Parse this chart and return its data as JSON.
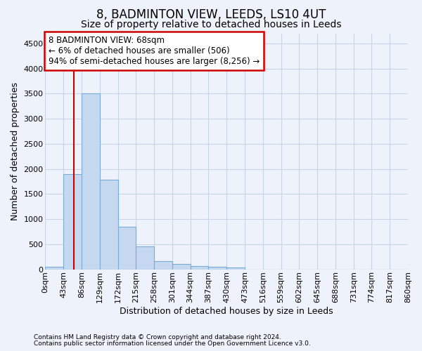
{
  "title": "8, BADMINTON VIEW, LEEDS, LS10 4UT",
  "subtitle": "Size of property relative to detached houses in Leeds",
  "xlabel": "Distribution of detached houses by size in Leeds",
  "ylabel": "Number of detached properties",
  "bar_values": [
    50,
    1900,
    3500,
    1780,
    850,
    460,
    165,
    100,
    70,
    55,
    35,
    0,
    0,
    0,
    0,
    0,
    0,
    0,
    0,
    0
  ],
  "bin_labels": [
    "0sqm",
    "43sqm",
    "86sqm",
    "129sqm",
    "172sqm",
    "215sqm",
    "258sqm",
    "301sqm",
    "344sqm",
    "387sqm",
    "430sqm",
    "473sqm",
    "516sqm",
    "559sqm",
    "602sqm",
    "645sqm",
    "688sqm",
    "731sqm",
    "774sqm",
    "817sqm",
    "860sqm"
  ],
  "bar_color": "#c5d8f0",
  "bar_edge_color": "#7badd4",
  "ylim": [
    0,
    4700
  ],
  "yticks": [
    0,
    500,
    1000,
    1500,
    2000,
    2500,
    3000,
    3500,
    4000,
    4500
  ],
  "vline_x": 68,
  "bin_width": 43,
  "annotation_text": "8 BADMINTON VIEW: 68sqm\n← 6% of detached houses are smaller (506)\n94% of semi-detached houses are larger (8,256) →",
  "annotation_box_color": "#ffffff",
  "annotation_box_edge_color": "#cc0000",
  "vline_color": "#cc0000",
  "footer_line1": "Contains HM Land Registry data © Crown copyright and database right 2024.",
  "footer_line2": "Contains public sector information licensed under the Open Government Licence v3.0.",
  "background_color": "#eef2fa",
  "grid_color": "#c8d4e8",
  "title_fontsize": 12,
  "subtitle_fontsize": 10,
  "axis_label_fontsize": 9,
  "tick_fontsize": 8,
  "annotation_fontsize": 8.5,
  "footer_fontsize": 6.5
}
